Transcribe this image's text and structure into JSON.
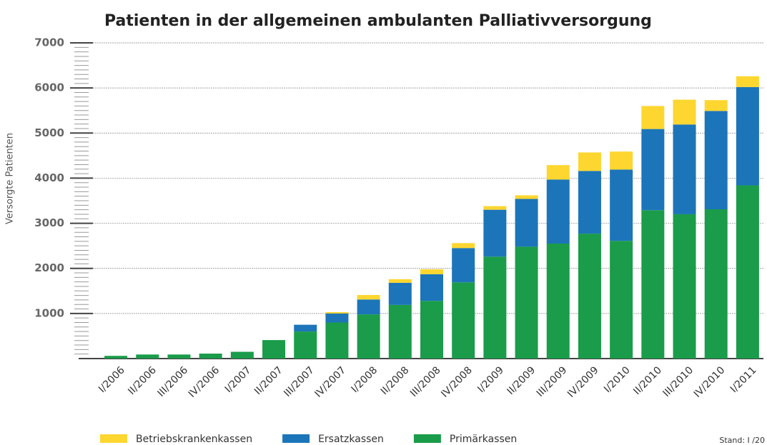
{
  "chart_data": {
    "type": "stacked_bar",
    "title": "Patienten in der allgemeinen ambulanten Palliativversorgung",
    "y_label": "Versorgte Patienten",
    "note": "Stand: I /20",
    "categories": [
      "I/2006",
      "II/2006",
      "III/2006",
      "IV/2006",
      "I/2007",
      "II/2007",
      "III/2007",
      "IV/2007",
      "I/2008",
      "II/2008",
      "III/2008",
      "IV/2008",
      "I/2009",
      "II/2009",
      "III/2009",
      "IV/2009",
      "I/2010",
      "II/2010",
      "III/2010",
      "IV/2010",
      "I/2011"
    ],
    "series": [
      {
        "name": "Primärkassen",
        "color": "#1a9c4a",
        "values": [
          60,
          90,
          90,
          110,
          150,
          410,
          600,
          800,
          980,
          1190,
          1280,
          1690,
          2260,
          2480,
          2550,
          2770,
          2610,
          3290,
          3200,
          3310,
          3840
        ]
      },
      {
        "name": "Ersatzkassen",
        "color": "#1c75b8",
        "values": [
          0,
          0,
          0,
          0,
          0,
          0,
          150,
          200,
          330,
          490,
          590,
          760,
          1040,
          1060,
          1420,
          1390,
          1580,
          1800,
          1990,
          2180,
          2180
        ]
      },
      {
        "name": "Betriebskrankenkassen",
        "color": "#fdd630",
        "values": [
          0,
          0,
          0,
          0,
          0,
          0,
          0,
          30,
          100,
          80,
          110,
          110,
          80,
          80,
          320,
          410,
          400,
          510,
          550,
          240,
          240
        ]
      }
    ],
    "legend_order": [
      2,
      1,
      0
    ],
    "ylim": [
      0,
      7000
    ],
    "yticks": [
      1000,
      2000,
      3000,
      4000,
      5000,
      6000,
      7000
    ],
    "grid": true
  }
}
